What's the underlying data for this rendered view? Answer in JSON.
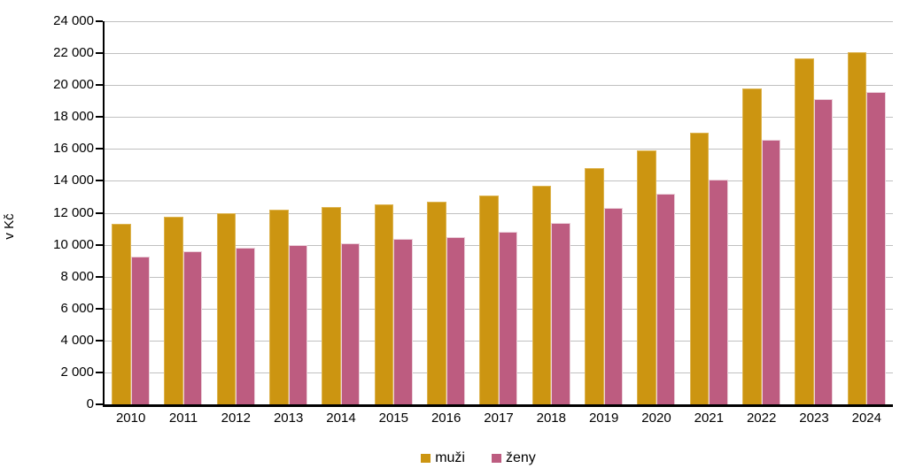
{
  "chart_data": {
    "type": "bar",
    "title": "",
    "ylabel": "v Kč",
    "xlabel": "",
    "categories": [
      "2010",
      "2011",
      "2012",
      "2013",
      "2014",
      "2015",
      "2016",
      "2017",
      "2018",
      "2019",
      "2020",
      "2021",
      "2022",
      "2023",
      "2024"
    ],
    "series": [
      {
        "name": "muži",
        "color": "#CC9511",
        "values": [
          11300,
          11750,
          12000,
          12200,
          12350,
          12550,
          12700,
          13100,
          13700,
          14800,
          15900,
          17000,
          19800,
          21650,
          22050
        ]
      },
      {
        "name": "ženy",
        "color": "#BD5C80",
        "values": [
          9250,
          9600,
          9800,
          10000,
          10100,
          10350,
          10450,
          10800,
          11350,
          12300,
          13200,
          14100,
          16550,
          19150,
          19550
        ]
      }
    ],
    "ylim": [
      0,
      24000
    ],
    "yticks": [
      0,
      2000,
      4000,
      6000,
      8000,
      10000,
      12000,
      14000,
      16000,
      18000,
      20000,
      22000,
      24000
    ],
    "ytick_labels": [
      "0",
      "2 000",
      "4 000",
      "6 000",
      "8 000",
      "10 000",
      "12 000",
      "14 000",
      "16 000",
      "18 000",
      "20 000",
      "22 000",
      "24 000"
    ],
    "grid": true,
    "gridline_color": "#C0C0C0",
    "axis_color": "#000000",
    "legend_position": "bottom"
  }
}
